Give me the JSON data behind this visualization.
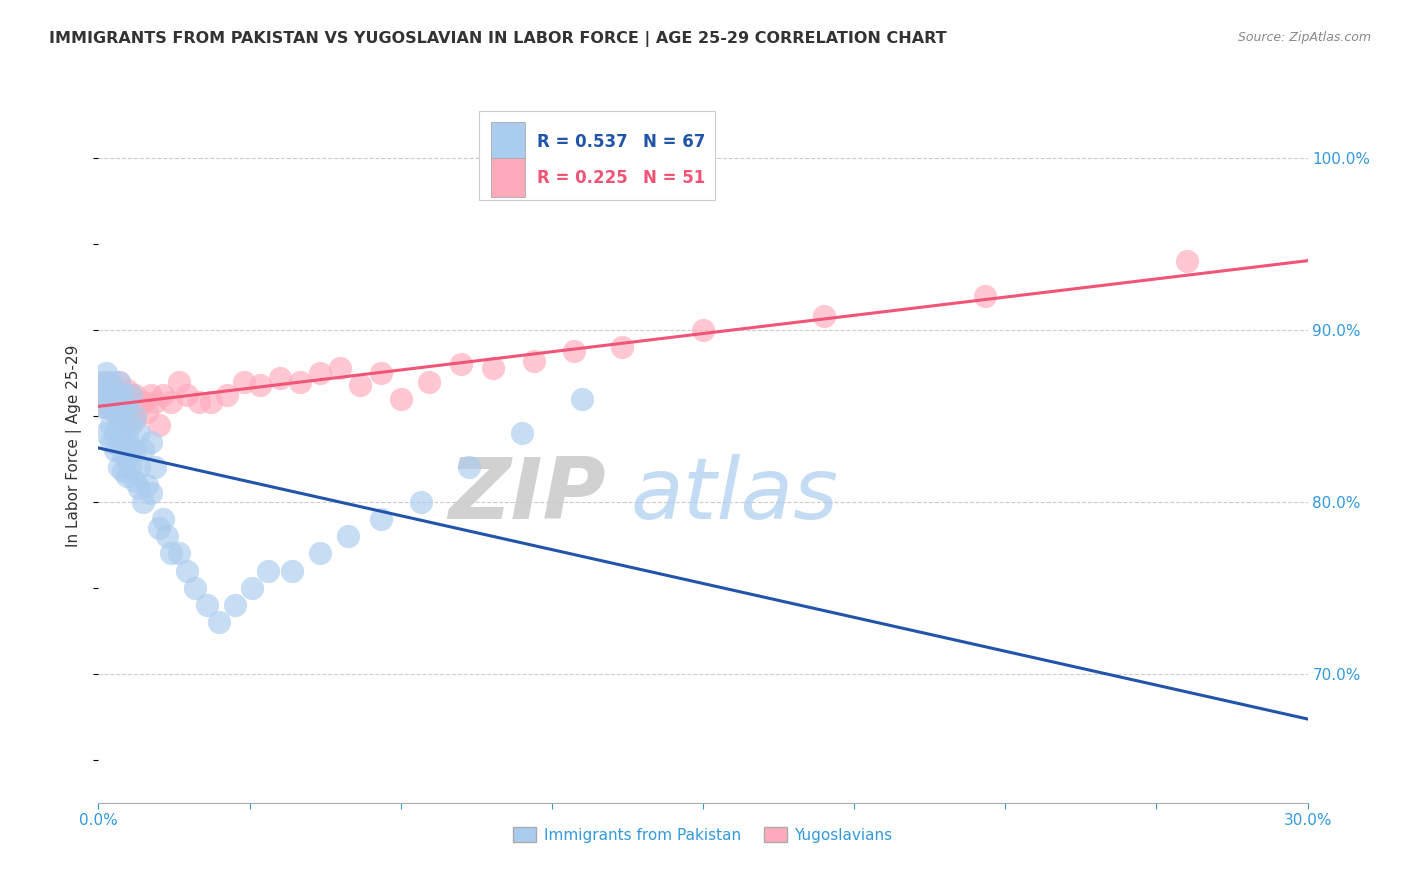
{
  "title": "IMMIGRANTS FROM PAKISTAN VS YUGOSLAVIAN IN LABOR FORCE | AGE 25-29 CORRELATION CHART",
  "source": "Source: ZipAtlas.com",
  "ylabel": "In Labor Force | Age 25-29",
  "right_ytick_vals": [
    0.7,
    0.8,
    0.9,
    1.0
  ],
  "xmin": 0.0,
  "xmax": 0.3,
  "ymin": 0.625,
  "ymax": 1.04,
  "pakistan_color": "#aaccee",
  "yugoslavian_color": "#ffaabb",
  "regression_pakistan_color": "#2255aa",
  "regression_yugoslavian_color": "#ee5577",
  "pakistan_R": 0.537,
  "pakistan_N": 67,
  "yugoslavian_R": 0.225,
  "yugoslavian_N": 51,
  "watermark_zip": "ZIP",
  "watermark_atlas": "atlas",
  "pak_x": [
    0.001,
    0.001,
    0.001,
    0.002,
    0.002,
    0.002,
    0.002,
    0.003,
    0.003,
    0.003,
    0.003,
    0.003,
    0.004,
    0.004,
    0.004,
    0.004,
    0.005,
    0.005,
    0.005,
    0.005,
    0.005,
    0.005,
    0.006,
    0.006,
    0.006,
    0.006,
    0.006,
    0.007,
    0.007,
    0.007,
    0.007,
    0.008,
    0.008,
    0.008,
    0.008,
    0.009,
    0.009,
    0.009,
    0.01,
    0.01,
    0.01,
    0.011,
    0.011,
    0.012,
    0.013,
    0.013,
    0.014,
    0.015,
    0.016,
    0.017,
    0.018,
    0.02,
    0.022,
    0.024,
    0.027,
    0.03,
    0.034,
    0.038,
    0.042,
    0.048,
    0.055,
    0.062,
    0.07,
    0.08,
    0.092,
    0.105,
    0.12
  ],
  "pak_y": [
    0.855,
    0.862,
    0.87,
    0.84,
    0.855,
    0.865,
    0.875,
    0.835,
    0.845,
    0.855,
    0.862,
    0.87,
    0.83,
    0.84,
    0.852,
    0.864,
    0.82,
    0.835,
    0.845,
    0.855,
    0.862,
    0.87,
    0.818,
    0.828,
    0.84,
    0.852,
    0.862,
    0.815,
    0.825,
    0.838,
    0.855,
    0.82,
    0.83,
    0.845,
    0.862,
    0.812,
    0.83,
    0.85,
    0.808,
    0.82,
    0.84,
    0.8,
    0.83,
    0.81,
    0.805,
    0.835,
    0.82,
    0.785,
    0.79,
    0.78,
    0.77,
    0.77,
    0.76,
    0.75,
    0.74,
    0.73,
    0.74,
    0.75,
    0.76,
    0.76,
    0.77,
    0.78,
    0.79,
    0.8,
    0.82,
    0.84,
    0.86
  ],
  "yug_x": [
    0.001,
    0.001,
    0.002,
    0.002,
    0.003,
    0.003,
    0.004,
    0.004,
    0.005,
    0.005,
    0.005,
    0.006,
    0.006,
    0.007,
    0.007,
    0.008,
    0.008,
    0.009,
    0.009,
    0.01,
    0.011,
    0.012,
    0.013,
    0.014,
    0.015,
    0.016,
    0.018,
    0.02,
    0.022,
    0.025,
    0.028,
    0.032,
    0.036,
    0.04,
    0.045,
    0.05,
    0.055,
    0.06,
    0.065,
    0.07,
    0.075,
    0.082,
    0.09,
    0.098,
    0.108,
    0.118,
    0.13,
    0.15,
    0.18,
    0.22,
    0.27
  ],
  "yug_y": [
    0.86,
    0.868,
    0.855,
    0.87,
    0.855,
    0.868,
    0.852,
    0.865,
    0.85,
    0.86,
    0.87,
    0.848,
    0.862,
    0.852,
    0.865,
    0.85,
    0.862,
    0.848,
    0.862,
    0.855,
    0.858,
    0.852,
    0.862,
    0.858,
    0.845,
    0.862,
    0.858,
    0.87,
    0.862,
    0.858,
    0.858,
    0.862,
    0.87,
    0.868,
    0.872,
    0.87,
    0.875,
    0.878,
    0.868,
    0.875,
    0.86,
    0.87,
    0.88,
    0.878,
    0.882,
    0.888,
    0.89,
    0.9,
    0.908,
    0.92,
    0.94
  ]
}
